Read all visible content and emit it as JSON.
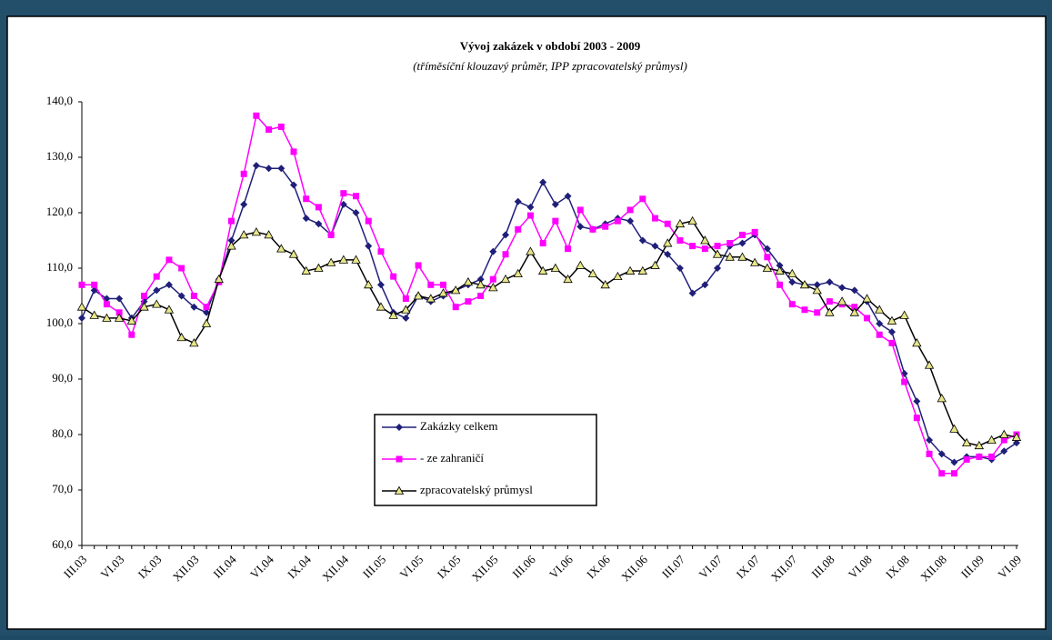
{
  "chart_data": {
    "type": "line",
    "title": "Vývoj zakázek v období 2003 - 2009",
    "subtitle": "(tříměsíční klouzavý průměr, IPP zpracovatelský průmysl)",
    "categories": [
      "III.03",
      null,
      null,
      "VI.03",
      null,
      null,
      "IX.03",
      null,
      null,
      "XII.03",
      null,
      null,
      "III.04",
      null,
      null,
      "VI.04",
      null,
      null,
      "IX.04",
      null,
      null,
      "XII.04",
      null,
      null,
      "III.05",
      null,
      null,
      "VI.05",
      null,
      null,
      "IX.05",
      null,
      null,
      "XII.05",
      null,
      null,
      "III.06",
      null,
      null,
      "VI.06",
      null,
      null,
      "IX.06",
      null,
      null,
      "XII.06",
      null,
      null,
      "III.07",
      null,
      null,
      "VI.07",
      null,
      null,
      "IX.07",
      null,
      null,
      "XII.07",
      null,
      null,
      "III.08",
      null,
      null,
      "VI.08",
      null,
      null,
      "IX.08",
      null,
      null,
      "XII.08",
      null,
      null,
      "III.09",
      null,
      null,
      "VI.09"
    ],
    "series": [
      {
        "name": "Zakázky celkem",
        "color": "#1f1f7a",
        "marker": "diamond",
        "values": [
          101,
          106,
          104.5,
          104.5,
          101,
          104,
          106,
          107,
          105,
          103,
          102,
          108,
          115,
          121.5,
          128.5,
          128,
          128,
          125,
          119,
          118,
          116,
          121.5,
          120,
          114,
          107,
          102,
          101,
          105,
          104,
          105,
          106,
          107,
          108,
          113,
          116,
          122,
          121,
          125.5,
          121.5,
          123,
          117.5,
          117,
          118,
          119,
          118.5,
          115,
          114,
          112.5,
          110,
          105.5,
          107,
          110,
          114,
          114.5,
          116,
          113.5,
          110.5,
          107.5,
          107,
          107,
          107.5,
          106.5,
          106,
          104,
          100,
          98.5,
          91,
          86,
          79,
          76.5,
          75,
          76,
          76,
          75.5,
          77,
          78.5
        ]
      },
      {
        "name": "- ze zahraničí",
        "color": "#ff00ff",
        "marker": "square",
        "values": [
          107,
          107,
          103.5,
          102,
          98,
          105,
          108.5,
          111.5,
          110,
          105,
          103,
          107.5,
          118.5,
          127,
          137.5,
          135,
          135.5,
          131,
          122.5,
          121,
          116,
          123.5,
          123,
          118.5,
          113,
          108.5,
          104.5,
          110.5,
          107,
          107,
          103,
          104,
          105,
          108,
          112.5,
          117,
          119.5,
          114.5,
          118.5,
          113.5,
          120.5,
          117,
          117.5,
          118.5,
          120.5,
          122.5,
          119,
          118,
          115,
          114,
          113.5,
          114,
          114.5,
          116,
          116.5,
          112,
          107,
          103.5,
          102.5,
          102,
          104,
          103.5,
          103,
          101,
          98,
          96.5,
          89.5,
          83,
          76.5,
          73,
          73,
          75.5,
          76,
          76,
          79,
          80
        ]
      },
      {
        "name": "zpracovatelský průmysl",
        "color": "#000000",
        "marker": "triangle",
        "values": [
          103,
          101.5,
          101,
          101,
          100.5,
          103,
          103.5,
          102.5,
          97.5,
          96.5,
          100,
          108,
          114,
          116,
          116.5,
          116,
          113.5,
          112.5,
          109.5,
          110,
          111,
          111.5,
          111.5,
          107,
          103,
          101.5,
          102.5,
          105,
          104.5,
          105.5,
          106,
          107.5,
          107,
          106.5,
          108,
          109,
          113,
          109.5,
          110,
          108,
          110.5,
          109,
          107,
          108.5,
          109.5,
          109.5,
          110.5,
          114.5,
          118,
          118.5,
          115,
          112.5,
          112,
          112,
          111,
          110,
          109.5,
          109,
          107,
          106,
          102,
          104,
          102,
          104.5,
          102.5,
          100.5,
          101.5,
          96.5,
          92.5,
          86.5,
          81,
          78.5,
          78,
          79,
          80,
          79.5
        ]
      }
    ],
    "ylim": [
      60,
      140
    ],
    "yticks": [
      {
        "value": 60,
        "label": "60,0"
      },
      {
        "value": 70,
        "label": "70,0"
      },
      {
        "value": 80,
        "label": "80,0"
      },
      {
        "value": 90,
        "label": "90,0"
      },
      {
        "value": 100,
        "label": "100,0"
      },
      {
        "value": 110,
        "label": "110,0"
      },
      {
        "value": 120,
        "label": "120,0"
      },
      {
        "value": 130,
        "label": "130,0"
      },
      {
        "value": 140,
        "label": "140,0"
      }
    ],
    "grid": false
  }
}
